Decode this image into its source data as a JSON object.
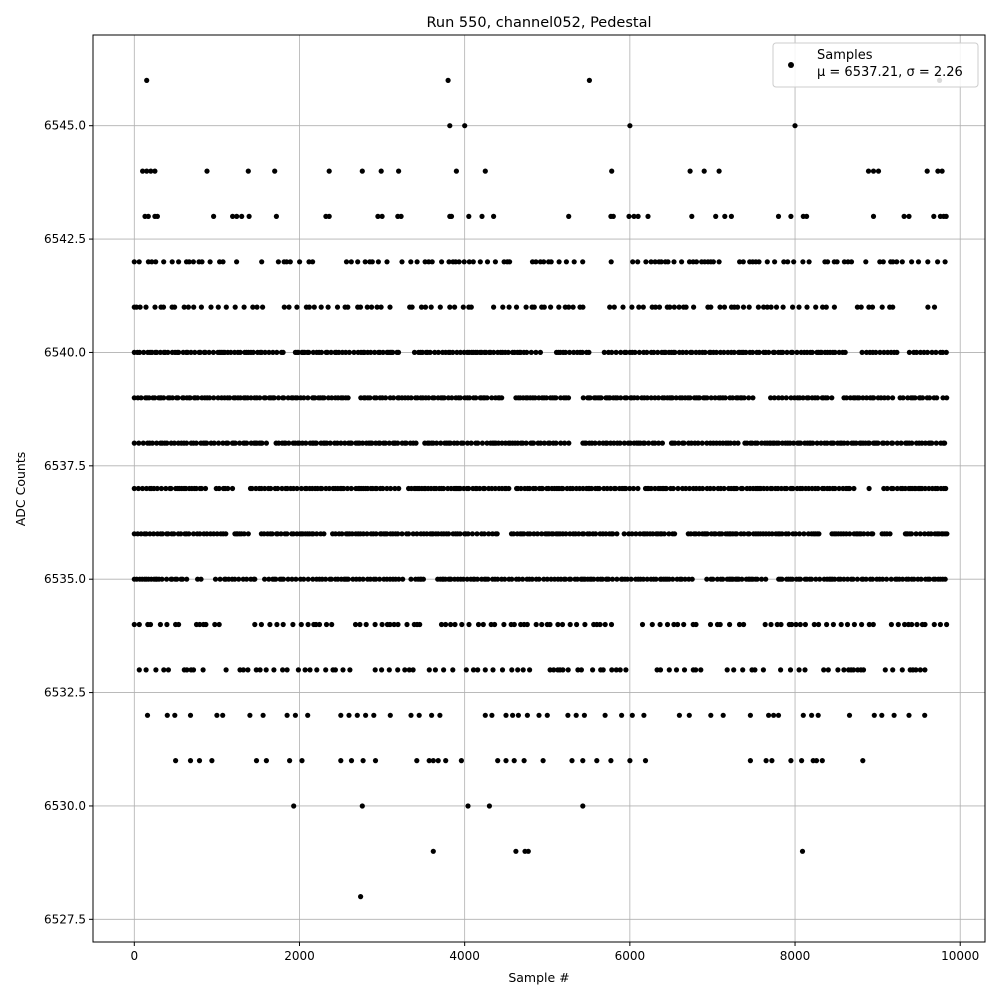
{
  "chart_data": {
    "type": "scatter",
    "title": "Run 550, channel052, Pedestal",
    "xlabel": "Sample #",
    "ylabel": "ADC Counts",
    "xlim": [
      -500,
      10300
    ],
    "ylim": [
      6527,
      6547
    ],
    "xticks": [
      0,
      2000,
      4000,
      6000,
      8000,
      10000
    ],
    "yticks": [
      6527.5,
      6530.0,
      6532.5,
      6535.0,
      6537.5,
      6540.0,
      6542.5,
      6545.0
    ],
    "xtick_labels": [
      "0",
      "2000",
      "4000",
      "6000",
      "8000",
      "10000"
    ],
    "ytick_labels": [
      "6527.5",
      "6530.0",
      "6532.5",
      "6535.0",
      "6537.5",
      "6540.0",
      "6542.5",
      "6545.0"
    ],
    "grid": true,
    "legend_position": "top-right",
    "marker_color": "#000000",
    "series": [
      {
        "name": "Samples",
        "stats_label": "μ = 6537.21, σ = 2.26",
        "bands": [
          {
            "y": 6536,
            "range": [
              0,
              9840
            ],
            "density": "dense"
          },
          {
            "y": 6537,
            "range": [
              0,
              9840
            ],
            "density": "dense"
          },
          {
            "y": 6538,
            "range": [
              0,
              9840
            ],
            "density": "dense"
          },
          {
            "y": 6539,
            "range": [
              0,
              9840
            ],
            "density": "dense"
          },
          {
            "y": 6540,
            "range": [
              0,
              9840
            ],
            "density": "dense"
          },
          {
            "y": 6535,
            "range": [
              0,
              9840
            ],
            "density": "dense"
          },
          {
            "y": 6541,
            "range": [
              0,
              9840
            ],
            "density": "medium"
          },
          {
            "y": 6534,
            "range": [
              0,
              9840
            ],
            "density": "medium"
          },
          {
            "y": 6542,
            "range": [
              0,
              9840
            ],
            "density": "medium"
          },
          {
            "y": 6533,
            "range": [
              60,
              9600
            ],
            "density": "medium"
          }
        ],
        "points": [
          [
            150,
            6546
          ],
          [
            3800,
            6546
          ],
          [
            5510,
            6546
          ],
          [
            9750,
            6546
          ],
          [
            3820,
            6545
          ],
          [
            4000,
            6545
          ],
          [
            6000,
            6545
          ],
          [
            8000,
            6545
          ],
          [
            100,
            6544
          ],
          [
            150,
            6544
          ],
          [
            200,
            6544
          ],
          [
            250,
            6544
          ],
          [
            880,
            6544
          ],
          [
            1380,
            6544
          ],
          [
            1700,
            6544
          ],
          [
            2360,
            6544
          ],
          [
            2760,
            6544
          ],
          [
            2990,
            6544
          ],
          [
            3200,
            6544
          ],
          [
            3900,
            6544
          ],
          [
            4250,
            6544
          ],
          [
            5780,
            6544
          ],
          [
            6730,
            6544
          ],
          [
            6900,
            6544
          ],
          [
            7080,
            6544
          ],
          [
            8890,
            6544
          ],
          [
            8950,
            6544
          ],
          [
            9010,
            6544
          ],
          [
            9600,
            6544
          ],
          [
            9730,
            6544
          ],
          [
            9780,
            6544
          ],
          [
            130,
            6543
          ],
          [
            170,
            6543
          ],
          [
            250,
            6543
          ],
          [
            280,
            6543
          ],
          [
            960,
            6543
          ],
          [
            1190,
            6543
          ],
          [
            1240,
            6543
          ],
          [
            1300,
            6543
          ],
          [
            1390,
            6543
          ],
          [
            1720,
            6543
          ],
          [
            2320,
            6543
          ],
          [
            2360,
            6543
          ],
          [
            2950,
            6543
          ],
          [
            3000,
            6543
          ],
          [
            3190,
            6543
          ],
          [
            3230,
            6543
          ],
          [
            3820,
            6543
          ],
          [
            3840,
            6543
          ],
          [
            4050,
            6543
          ],
          [
            4210,
            6543
          ],
          [
            4350,
            6543
          ],
          [
            5260,
            6543
          ],
          [
            5770,
            6543
          ],
          [
            5800,
            6543
          ],
          [
            5990,
            6543
          ],
          [
            6050,
            6543
          ],
          [
            6100,
            6543
          ],
          [
            6220,
            6543
          ],
          [
            6750,
            6543
          ],
          [
            7040,
            6543
          ],
          [
            7150,
            6543
          ],
          [
            7230,
            6543
          ],
          [
            7800,
            6543
          ],
          [
            7950,
            6543
          ],
          [
            8100,
            6543
          ],
          [
            8140,
            6543
          ],
          [
            8950,
            6543
          ],
          [
            9320,
            6543
          ],
          [
            9380,
            6543
          ],
          [
            9680,
            6543
          ],
          [
            9760,
            6543
          ],
          [
            9800,
            6543
          ],
          [
            9830,
            6543
          ],
          [
            160,
            6532
          ],
          [
            400,
            6532
          ],
          [
            490,
            6532
          ],
          [
            680,
            6532
          ],
          [
            1000,
            6532
          ],
          [
            1070,
            6532
          ],
          [
            1400,
            6532
          ],
          [
            1560,
            6532
          ],
          [
            1850,
            6532
          ],
          [
            1950,
            6532
          ],
          [
            2100,
            6532
          ],
          [
            2500,
            6532
          ],
          [
            2600,
            6532
          ],
          [
            2700,
            6532
          ],
          [
            2800,
            6532
          ],
          [
            2900,
            6532
          ],
          [
            3100,
            6532
          ],
          [
            3350,
            6532
          ],
          [
            3450,
            6532
          ],
          [
            3600,
            6532
          ],
          [
            3700,
            6532
          ],
          [
            4250,
            6532
          ],
          [
            4330,
            6532
          ],
          [
            4500,
            6532
          ],
          [
            4580,
            6532
          ],
          [
            4650,
            6532
          ],
          [
            4760,
            6532
          ],
          [
            4900,
            6532
          ],
          [
            5000,
            6532
          ],
          [
            5250,
            6532
          ],
          [
            5350,
            6532
          ],
          [
            5450,
            6532
          ],
          [
            5700,
            6532
          ],
          [
            5900,
            6532
          ],
          [
            6030,
            6532
          ],
          [
            6170,
            6532
          ],
          [
            6600,
            6532
          ],
          [
            6720,
            6532
          ],
          [
            6980,
            6532
          ],
          [
            7130,
            6532
          ],
          [
            7460,
            6532
          ],
          [
            7680,
            6532
          ],
          [
            7740,
            6532
          ],
          [
            7800,
            6532
          ],
          [
            8100,
            6532
          ],
          [
            8200,
            6532
          ],
          [
            8280,
            6532
          ],
          [
            8660,
            6532
          ],
          [
            8960,
            6532
          ],
          [
            9050,
            6532
          ],
          [
            9200,
            6532
          ],
          [
            9380,
            6532
          ],
          [
            9570,
            6532
          ],
          [
            500,
            6531
          ],
          [
            680,
            6531
          ],
          [
            790,
            6531
          ],
          [
            940,
            6531
          ],
          [
            1480,
            6531
          ],
          [
            1600,
            6531
          ],
          [
            1880,
            6531
          ],
          [
            2030,
            6531
          ],
          [
            2500,
            6531
          ],
          [
            2630,
            6531
          ],
          [
            2770,
            6531
          ],
          [
            2920,
            6531
          ],
          [
            3420,
            6531
          ],
          [
            3570,
            6531
          ],
          [
            3620,
            6531
          ],
          [
            3680,
            6531
          ],
          [
            3770,
            6531
          ],
          [
            3960,
            6531
          ],
          [
            4400,
            6531
          ],
          [
            4500,
            6531
          ],
          [
            4600,
            6531
          ],
          [
            4720,
            6531
          ],
          [
            4950,
            6531
          ],
          [
            5300,
            6531
          ],
          [
            5430,
            6531
          ],
          [
            5600,
            6531
          ],
          [
            5770,
            6531
          ],
          [
            6000,
            6531
          ],
          [
            6190,
            6531
          ],
          [
            7460,
            6531
          ],
          [
            7650,
            6531
          ],
          [
            7720,
            6531
          ],
          [
            7950,
            6531
          ],
          [
            8080,
            6531
          ],
          [
            8220,
            6531
          ],
          [
            8260,
            6531
          ],
          [
            8330,
            6531
          ],
          [
            8820,
            6531
          ],
          [
            1930,
            6530
          ],
          [
            2760,
            6530
          ],
          [
            4040,
            6530
          ],
          [
            4300,
            6530
          ],
          [
            5430,
            6530
          ],
          [
            3620,
            6529
          ],
          [
            4620,
            6529
          ],
          [
            4730,
            6529
          ],
          [
            4770,
            6529
          ],
          [
            8090,
            6529
          ],
          [
            2740,
            6528
          ]
        ]
      }
    ]
  }
}
